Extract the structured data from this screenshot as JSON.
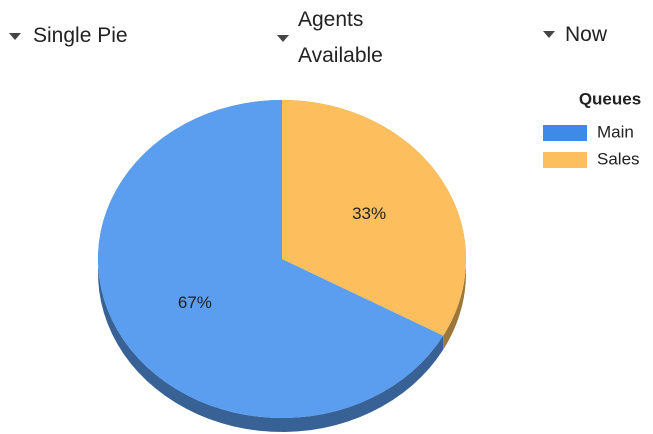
{
  "controls": [
    {
      "label": "Single Pie"
    },
    {
      "label": "Agents Available"
    },
    {
      "label": "Now"
    }
  ],
  "chart_data": {
    "type": "pie",
    "legend_title": "Queues",
    "legend": "right",
    "categories": [
      "Main",
      "Sales"
    ],
    "values": [
      67,
      33
    ],
    "value_labels": [
      "67%",
      "33%"
    ],
    "colors": [
      "#5b9ef0",
      "#fdbf5e"
    ],
    "legend_colors": [
      "#3d8ae8",
      "#fdbf5e"
    ]
  }
}
